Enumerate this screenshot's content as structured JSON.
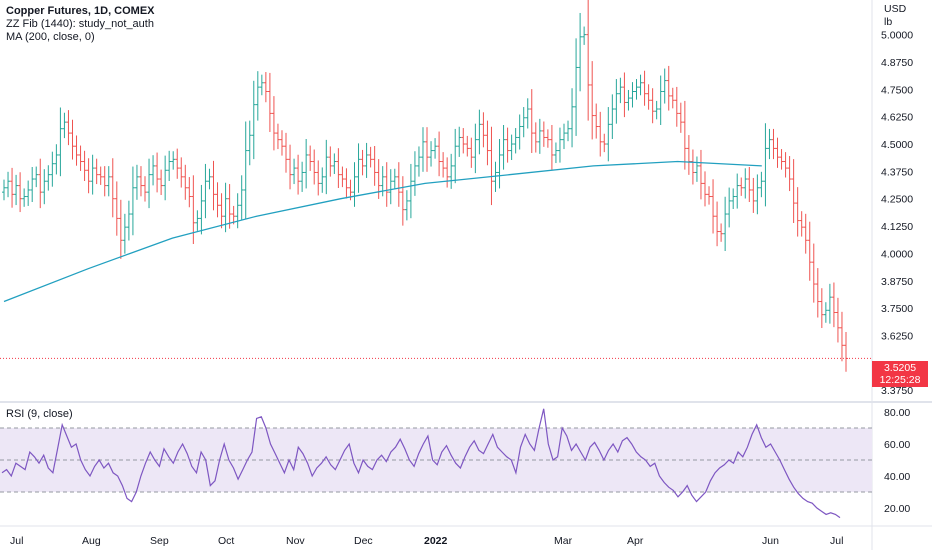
{
  "legend": {
    "title": "Copper Futures, 1D, COMEX",
    "zz": "ZZ Fib (1440): study_not_auth",
    "ma": "MA (200, close, 0)",
    "rsi": "RSI (9, close)"
  },
  "axis": {
    "currency": "USD",
    "unit": "lb"
  },
  "last_price": {
    "value": "3.5205",
    "countdown": "12:25:28"
  },
  "colors": {
    "up": "#26a69a",
    "down": "#ef5350",
    "ma": "#22a0c0",
    "rsi": "#7e57c2",
    "rsi_band": "#ede7f6",
    "price": "#f23645"
  },
  "chart_data": [
    {
      "type": "ohlc",
      "x_ticks": [
        "Jul",
        "Aug",
        "Sep",
        "Oct",
        "Nov",
        "Dec",
        "2022",
        "Mar",
        "Apr",
        "Jun",
        "Jul"
      ],
      "y_ticks": [
        "5.0000",
        "4.8750",
        "4.7500",
        "4.6250",
        "4.5000",
        "4.3750",
        "4.2500",
        "4.1250",
        "4.0000",
        "3.8750",
        "3.7500",
        "3.6250",
        "3.3750"
      ],
      "ylim": [
        3.33,
        5.14
      ],
      "closes": [
        4.3,
        4.33,
        4.27,
        4.31,
        4.25,
        4.26,
        4.29,
        4.34,
        4.36,
        4.28,
        4.33,
        4.36,
        4.41,
        4.45,
        4.57,
        4.6,
        4.55,
        4.49,
        4.45,
        4.42,
        4.38,
        4.33,
        4.39,
        4.36,
        4.35,
        4.31,
        4.35,
        4.25,
        4.16,
        4.06,
        4.12,
        4.18,
        4.3,
        4.35,
        4.31,
        4.28,
        4.36,
        4.4,
        4.34,
        4.31,
        4.38,
        4.42,
        4.43,
        4.39,
        4.35,
        4.3,
        4.26,
        4.14,
        4.16,
        4.24,
        4.33,
        4.35,
        4.27,
        4.22,
        4.17,
        4.25,
        4.18,
        4.17,
        4.22,
        4.29,
        4.47,
        4.54,
        4.68,
        4.76,
        4.78,
        4.74,
        4.64,
        4.55,
        4.52,
        4.49,
        4.43,
        4.36,
        4.39,
        4.33,
        4.37,
        4.45,
        4.42,
        4.37,
        4.32,
        4.35,
        4.44,
        4.4,
        4.42,
        4.36,
        4.34,
        4.3,
        4.28,
        4.35,
        4.43,
        4.4,
        4.45,
        4.43,
        4.37,
        4.31,
        4.35,
        4.28,
        4.33,
        4.35,
        4.28,
        4.2,
        4.24,
        4.33,
        4.4,
        4.44,
        4.51,
        4.44,
        4.47,
        4.49,
        4.42,
        4.39,
        4.35,
        4.4,
        4.49,
        4.53,
        4.5,
        4.48,
        4.44,
        4.52,
        4.59,
        4.54,
        4.47,
        4.33,
        4.37,
        4.45,
        4.52,
        4.47,
        4.5,
        4.53,
        4.58,
        4.62,
        4.66,
        4.55,
        4.51,
        4.56,
        4.53,
        4.52,
        4.45,
        4.47,
        4.52,
        4.55,
        4.57,
        4.67,
        4.85,
        4.99,
        5.0,
        4.77,
        4.63,
        4.58,
        4.51,
        4.5,
        4.59,
        4.66,
        4.73,
        4.76,
        4.69,
        4.71,
        4.74,
        4.76,
        4.78,
        4.73,
        4.7,
        4.65,
        4.66,
        4.74,
        4.79,
        4.72,
        4.7,
        4.64,
        4.6,
        4.48,
        4.42,
        4.37,
        4.4,
        4.32,
        4.27,
        4.26,
        4.17,
        4.1,
        4.09,
        4.18,
        4.24,
        4.26,
        4.31,
        4.3,
        4.34,
        4.29,
        4.24,
        4.3,
        4.33,
        4.48,
        4.52,
        4.48,
        4.44,
        4.42,
        4.39,
        4.34,
        4.23,
        4.15,
        4.12,
        4.06,
        3.96,
        3.86,
        3.78,
        3.72,
        3.74,
        3.8,
        3.73,
        3.66,
        3.58,
        3.52
      ],
      "ma_values": [
        3.78,
        3.93,
        4.07,
        4.17,
        4.25,
        4.32,
        4.36,
        4.4,
        4.42,
        4.4
      ],
      "ma_x": [
        0,
        0.1,
        0.2,
        0.3,
        0.4,
        0.5,
        0.6,
        0.7,
        0.8,
        0.9
      ]
    },
    {
      "type": "line",
      "title": "RSI (9, close)",
      "y_ticks": [
        "80.00",
        "60.00",
        "40.00",
        "20.00"
      ],
      "ylim": [
        10,
        85
      ],
      "bands": [
        30,
        50,
        70
      ],
      "values": [
        42,
        44,
        40,
        48,
        46,
        44,
        55,
        52,
        48,
        53,
        45,
        42,
        57,
        72,
        65,
        58,
        60,
        50,
        44,
        40,
        46,
        50,
        45,
        48,
        42,
        40,
        34,
        26,
        24,
        30,
        40,
        48,
        55,
        50,
        46,
        57,
        52,
        48,
        55,
        60,
        54,
        46,
        42,
        55,
        50,
        34,
        37,
        50,
        60,
        50,
        45,
        38,
        44,
        50,
        55,
        76,
        77,
        70,
        60,
        54,
        48,
        42,
        50,
        44,
        58,
        54,
        48,
        40,
        45,
        48,
        52,
        47,
        44,
        50,
        56,
        60,
        48,
        42,
        50,
        46,
        44,
        50,
        53,
        49,
        55,
        58,
        63,
        57,
        50,
        46,
        54,
        60,
        65,
        50,
        47,
        55,
        59,
        53,
        48,
        45,
        52,
        58,
        62,
        56,
        54,
        60,
        66,
        58,
        55,
        52,
        50,
        42,
        58,
        66,
        60,
        56,
        70,
        82,
        60,
        50,
        52,
        70,
        65,
        56,
        60,
        55,
        50,
        58,
        61,
        56,
        50,
        56,
        60,
        55,
        62,
        64,
        60,
        55,
        52,
        50,
        46,
        48,
        40,
        36,
        33,
        31,
        27,
        30,
        34,
        28,
        24,
        27,
        30,
        37,
        42,
        45,
        47,
        50,
        48,
        55,
        52,
        58,
        66,
        72,
        64,
        58,
        60,
        55,
        50,
        44,
        38,
        33,
        29,
        26,
        24,
        23,
        20,
        18,
        16,
        17,
        16,
        14
      ]
    }
  ]
}
